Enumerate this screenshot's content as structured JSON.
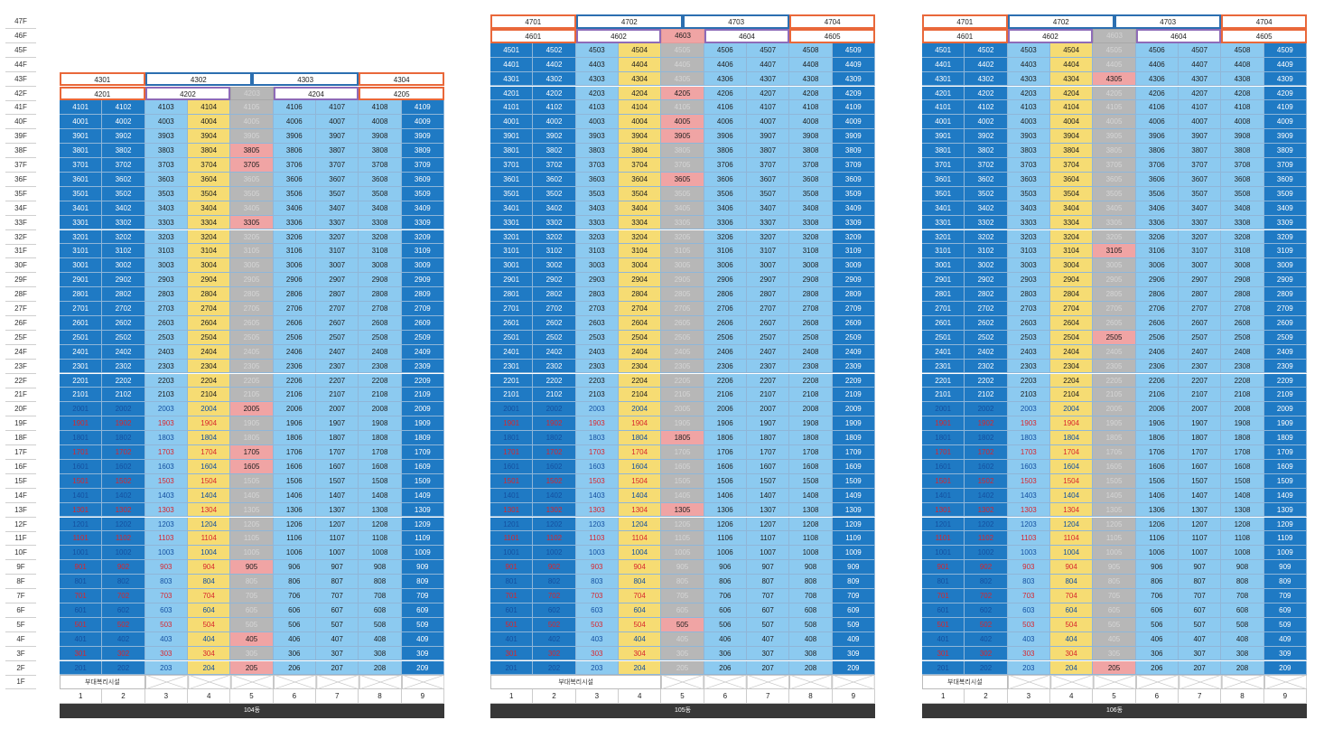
{
  "floors": [
    "47F",
    "46F",
    "45F",
    "44F",
    "43F",
    "42F",
    "41F",
    "40F",
    "39F",
    "38F",
    "37F",
    "36F",
    "35F",
    "34F",
    "33F",
    "32F",
    "31F",
    "30F",
    "29F",
    "28F",
    "27F",
    "26F",
    "25F",
    "24F",
    "23F",
    "22F",
    "21F",
    "20F",
    "19F",
    "18F",
    "17F",
    "16F",
    "15F",
    "14F",
    "13F",
    "12F",
    "11F",
    "10F",
    "9F",
    "8F",
    "7F",
    "6F",
    "5F",
    "4F",
    "3F",
    "2F",
    "1F"
  ],
  "columns": [
    "1",
    "2",
    "3",
    "4",
    "5",
    "6",
    "7",
    "8",
    "9"
  ],
  "facility_label": "부대복리시설",
  "buildings": [
    {
      "name": "104동",
      "top_floor": 41,
      "pent_upper": [
        "4301",
        "4302",
        "4303",
        "4304"
      ],
      "pent_lower": [
        "4201",
        "4202",
        "4203",
        "4204",
        "4205"
      ],
      "highlight_upper": [],
      "highlight_lower": [],
      "pink": [
        "3805",
        "3705",
        "3305",
        "2005",
        "1705",
        "1605",
        "905",
        "405",
        "205"
      ],
      "facility_cols": 2
    },
    {
      "name": "105동",
      "top_floor": 45,
      "pent_upper": [
        "4701",
        "4702",
        "4703",
        "4704"
      ],
      "pent_lower": [
        "4601",
        "4602",
        "4603",
        "4604",
        "4605"
      ],
      "highlight_upper": [],
      "highlight_lower": [
        "4603"
      ],
      "pink": [
        "4205",
        "4005",
        "3905",
        "3605",
        "1805",
        "1305",
        "505"
      ],
      "facility_cols": 4
    },
    {
      "name": "106동",
      "top_floor": 45,
      "pent_upper": [
        "4701",
        "4702",
        "4703",
        "4704"
      ],
      "pent_lower": [
        "4601",
        "4602",
        "4603",
        "4604",
        "4605"
      ],
      "highlight_upper": [],
      "highlight_lower": [],
      "pink": [
        "4305",
        "3105",
        "2505",
        "205"
      ],
      "facility_cols": 2
    }
  ],
  "colors": {
    "dark_blue": "#1f7ac4",
    "light_blue": "#8ccaf0",
    "yellow": "#f6dc73",
    "gray": "#b7b7b7",
    "pink": "#f0a4a4",
    "orange_border": "#e9683a",
    "blue_border": "#2c6fb0",
    "purple_border": "#8e6bb8"
  }
}
